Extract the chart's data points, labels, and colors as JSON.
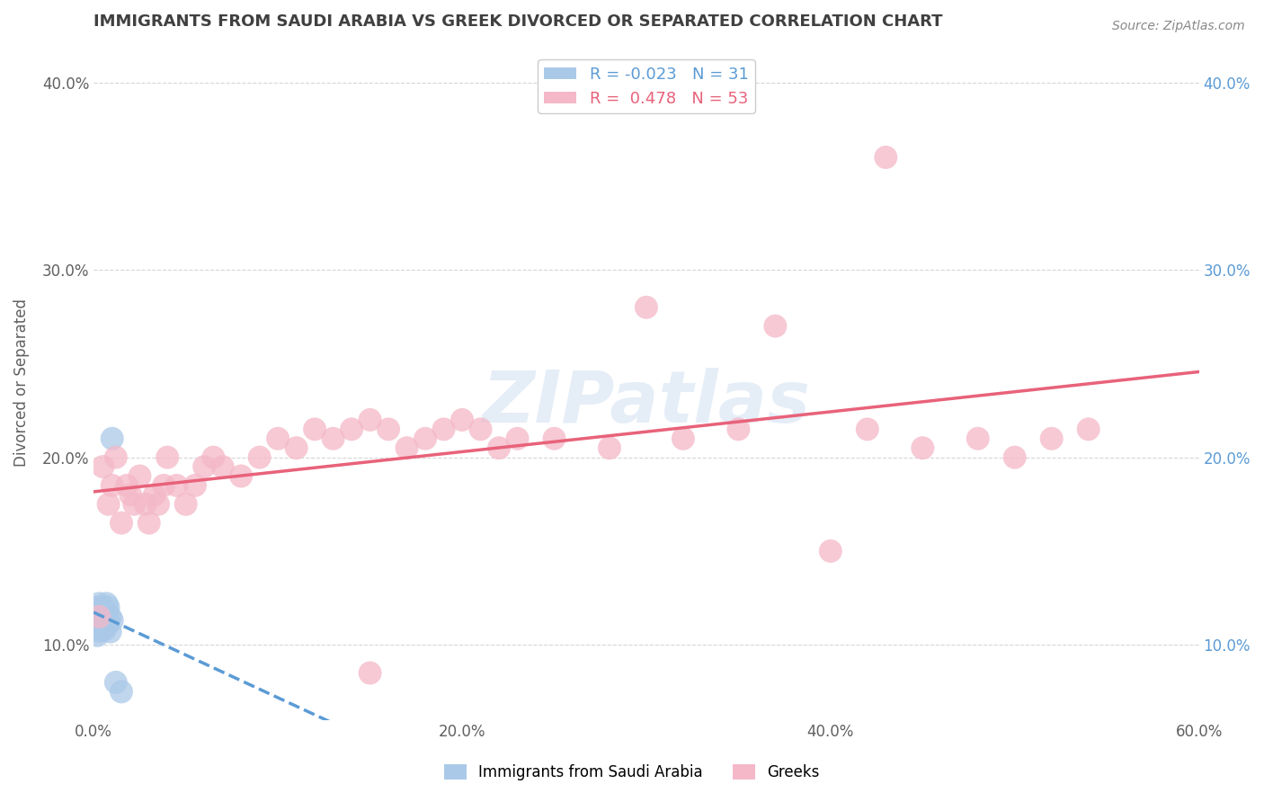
{
  "title": "IMMIGRANTS FROM SAUDI ARABIA VS GREEK DIVORCED OR SEPARATED CORRELATION CHART",
  "source": "Source: ZipAtlas.com",
  "ylabel": "Divorced or Separated",
  "watermark": "ZIPatlas",
  "legend_blue_label": "Immigrants from Saudi Arabia",
  "legend_pink_label": "Greeks",
  "R_blue": -0.023,
  "N_blue": 31,
  "R_pink": 0.478,
  "N_pink": 53,
  "xlim": [
    0.0,
    0.6
  ],
  "ylim": [
    0.06,
    0.42
  ],
  "yticks": [
    0.1,
    0.2,
    0.3,
    0.4
  ],
  "xticks": [
    0.0,
    0.2,
    0.4,
    0.6
  ],
  "blue_scatter_x": [
    0.001,
    0.001,
    0.002,
    0.002,
    0.002,
    0.003,
    0.003,
    0.003,
    0.003,
    0.004,
    0.004,
    0.004,
    0.005,
    0.005,
    0.005,
    0.005,
    0.006,
    0.006,
    0.006,
    0.006,
    0.007,
    0.007,
    0.007,
    0.008,
    0.008,
    0.009,
    0.009,
    0.01,
    0.01,
    0.012,
    0.015
  ],
  "blue_scatter_y": [
    0.115,
    0.11,
    0.12,
    0.105,
    0.113,
    0.118,
    0.112,
    0.107,
    0.122,
    0.115,
    0.108,
    0.117,
    0.113,
    0.12,
    0.11,
    0.116,
    0.112,
    0.118,
    0.108,
    0.115,
    0.122,
    0.11,
    0.118,
    0.112,
    0.12,
    0.115,
    0.107,
    0.113,
    0.21,
    0.08,
    0.075
  ],
  "pink_scatter_x": [
    0.003,
    0.005,
    0.008,
    0.01,
    0.012,
    0.015,
    0.018,
    0.02,
    0.022,
    0.025,
    0.028,
    0.03,
    0.033,
    0.035,
    0.038,
    0.04,
    0.045,
    0.05,
    0.055,
    0.06,
    0.065,
    0.07,
    0.08,
    0.09,
    0.1,
    0.11,
    0.12,
    0.13,
    0.14,
    0.15,
    0.16,
    0.17,
    0.18,
    0.19,
    0.2,
    0.21,
    0.22,
    0.23,
    0.25,
    0.28,
    0.32,
    0.35,
    0.37,
    0.4,
    0.42,
    0.45,
    0.48,
    0.5,
    0.52,
    0.54,
    0.3,
    0.43,
    0.15
  ],
  "pink_scatter_y": [
    0.115,
    0.195,
    0.175,
    0.185,
    0.2,
    0.165,
    0.185,
    0.18,
    0.175,
    0.19,
    0.175,
    0.165,
    0.18,
    0.175,
    0.185,
    0.2,
    0.185,
    0.175,
    0.185,
    0.195,
    0.2,
    0.195,
    0.19,
    0.2,
    0.21,
    0.205,
    0.215,
    0.21,
    0.215,
    0.22,
    0.215,
    0.205,
    0.21,
    0.215,
    0.22,
    0.215,
    0.205,
    0.21,
    0.21,
    0.205,
    0.21,
    0.215,
    0.27,
    0.15,
    0.215,
    0.205,
    0.21,
    0.2,
    0.21,
    0.215,
    0.28,
    0.36,
    0.085
  ],
  "blue_color": "#aac9e8",
  "pink_color": "#f4b8c8",
  "blue_line_color": "#5b9bd5",
  "pink_line_color": "#e8627a",
  "background_color": "#ffffff",
  "grid_color": "#cccccc",
  "title_color": "#404040",
  "axis_label_color": "#606060",
  "right_tick_color": "#5b9bd5"
}
